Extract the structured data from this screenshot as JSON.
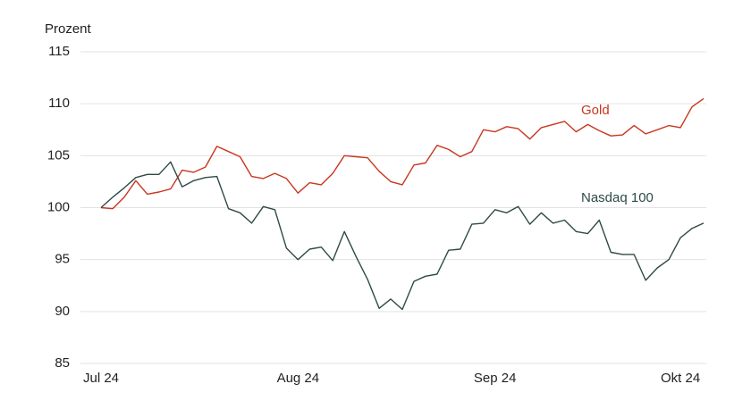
{
  "chart_data": {
    "type": "line",
    "y_label": "Prozent",
    "categories": [
      "Jul 24",
      null,
      null,
      null,
      null,
      null,
      null,
      null,
      null,
      null,
      null,
      null,
      null,
      null,
      null,
      null,
      null,
      "Aug 24",
      null,
      null,
      null,
      null,
      null,
      null,
      null,
      null,
      null,
      null,
      null,
      null,
      null,
      null,
      null,
      null,
      "Sep 24",
      null,
      null,
      null,
      null,
      null,
      null,
      null,
      null,
      null,
      null,
      null,
      null,
      null,
      null,
      null,
      "Okt 24",
      null,
      null
    ],
    "series": [
      {
        "name": "Gold",
        "color": "#c9361f",
        "values": [
          100,
          99.9,
          101,
          102.6,
          101.3,
          101.5,
          101.8,
          103.6,
          103.4,
          103.9,
          105.9,
          105.4,
          104.9,
          103.0,
          102.8,
          103.3,
          102.8,
          101.4,
          102.4,
          102.2,
          103.3,
          105.0,
          104.9,
          104.8,
          103.5,
          102.5,
          102.2,
          104.1,
          104.3,
          106.0,
          105.6,
          104.9,
          105.4,
          107.5,
          107.3,
          107.8,
          107.6,
          106.6,
          107.7,
          108.0,
          108.3,
          107.3,
          108.0,
          107.4,
          106.9,
          107.0,
          107.9,
          107.1,
          107.5,
          107.9,
          107.7,
          109.7,
          110.5
        ]
      },
      {
        "name": "Nasdaq 100",
        "color": "#2e4a47",
        "values": [
          100,
          101.0,
          101.9,
          102.9,
          103.2,
          103.2,
          104.4,
          102.0,
          102.6,
          102.9,
          103.0,
          99.9,
          99.5,
          98.5,
          100.1,
          99.8,
          96.1,
          95.0,
          96.0,
          96.2,
          94.9,
          97.7,
          95.3,
          93.1,
          90.3,
          91.2,
          90.2,
          92.9,
          93.4,
          93.6,
          95.9,
          96.0,
          98.4,
          98.5,
          99.8,
          99.5,
          100.1,
          98.4,
          99.5,
          98.5,
          98.8,
          97.7,
          97.5,
          98.8,
          95.7,
          95.5,
          95.5,
          93.0,
          94.2,
          95.0,
          97.1,
          98.0,
          98.5
        ]
      }
    ],
    "ylim": [
      85,
      115
    ],
    "yticks": [
      85,
      90,
      95,
      100,
      105,
      110,
      115
    ],
    "grid": true
  }
}
